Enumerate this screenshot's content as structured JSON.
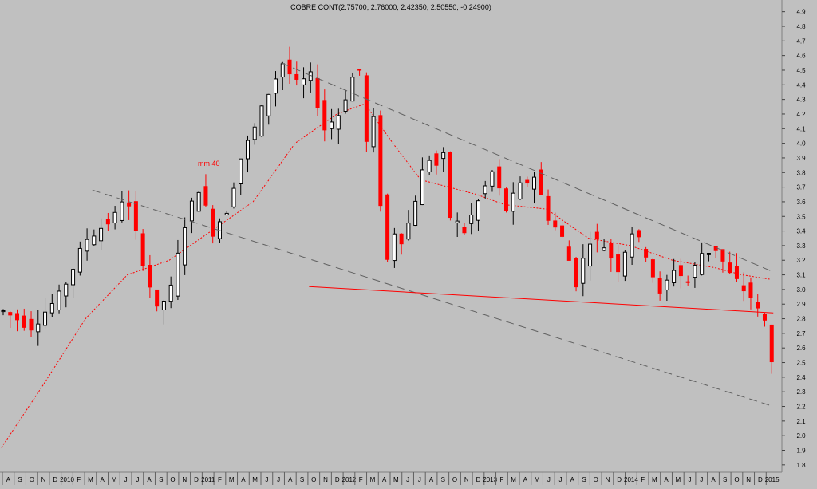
{
  "chart_data": {
    "type": "candlestick",
    "title": "COBRE CONT(2.75700, 2.76000, 2.42350, 2.50550, -0.24900)",
    "ylim": [
      1.75,
      4.98
    ],
    "y_ticks": [
      "4.9",
      "4.8",
      "4.7",
      "4.6",
      "4.5",
      "4.4",
      "4.3",
      "4.2",
      "4.1",
      "4.0",
      "3.9",
      "3.8",
      "3.7",
      "3.6",
      "3.5",
      "3.4",
      "3.3",
      "3.2",
      "3.1",
      "3.0",
      "2.9",
      "2.8",
      "2.7",
      "2.6",
      "2.5",
      "2.4",
      "2.3",
      "2.2",
      "2.1",
      "2.0",
      "1.9",
      "1.8"
    ],
    "x_ticks": [
      "A",
      "S",
      "O",
      "N",
      "D",
      "2010",
      "F",
      "M",
      "A",
      "M",
      "J",
      "J",
      "A",
      "S",
      "O",
      "N",
      "D",
      "2011",
      "F",
      "M",
      "A",
      "M",
      "J",
      "J",
      "A",
      "S",
      "O",
      "N",
      "D",
      "2012",
      "F",
      "M",
      "A",
      "M",
      "J",
      "J",
      "A",
      "S",
      "O",
      "N",
      "D",
      "2013",
      "F",
      "M",
      "A",
      "M",
      "J",
      "J",
      "A",
      "S",
      "O",
      "N",
      "D",
      "2014",
      "F",
      "M",
      "A",
      "M",
      "J",
      "J",
      "A",
      "S",
      "O",
      "N",
      "D",
      "2015"
    ],
    "grid": false,
    "colors": {
      "up": "#000000",
      "down": "#ff0000",
      "ma": "#ff0000",
      "channel": "#606060",
      "support": "#ff0000",
      "background": "#c0c0c0"
    },
    "annotation_ma": "mm 40",
    "close_path": [
      [
        0,
        2.85
      ],
      [
        4,
        2.75
      ],
      [
        8,
        2.95
      ],
      [
        12,
        3.35
      ],
      [
        16,
        3.5
      ],
      [
        17,
        3.62
      ],
      [
        18,
        3.55
      ],
      [
        20,
        3.2
      ],
      [
        22,
        2.85
      ],
      [
        24,
        3.0
      ],
      [
        26,
        3.45
      ],
      [
        28,
        3.7
      ],
      [
        30,
        3.4
      ],
      [
        32,
        3.55
      ],
      [
        34,
        3.9
      ],
      [
        36,
        4.1
      ],
      [
        38,
        4.35
      ],
      [
        40,
        4.55
      ],
      [
        42,
        4.4
      ],
      [
        44,
        4.45
      ],
      [
        46,
        4.1
      ],
      [
        48,
        4.2
      ],
      [
        50,
        4.45
      ],
      [
        51,
        4.5
      ],
      [
        52,
        4.0
      ],
      [
        53,
        4.15
      ],
      [
        54,
        3.6
      ],
      [
        55,
        3.2
      ],
      [
        56,
        3.4
      ],
      [
        57,
        3.35
      ],
      [
        58,
        3.45
      ],
      [
        60,
        3.8
      ],
      [
        61,
        3.9
      ],
      [
        62,
        3.85
      ],
      [
        63,
        3.9
      ],
      [
        64,
        3.5
      ],
      [
        66,
        3.4
      ],
      [
        68,
        3.6
      ],
      [
        70,
        3.8
      ],
      [
        72,
        3.55
      ],
      [
        74,
        3.7
      ],
      [
        76,
        3.78
      ],
      [
        78,
        3.5
      ],
      [
        80,
        3.35
      ],
      [
        82,
        3.05
      ],
      [
        84,
        3.35
      ],
      [
        86,
        3.3
      ],
      [
        88,
        3.15
      ],
      [
        90,
        3.4
      ],
      [
        92,
        3.25
      ],
      [
        94,
        2.95
      ],
      [
        96,
        3.15
      ],
      [
        98,
        3.05
      ],
      [
        100,
        3.25
      ],
      [
        102,
        3.28
      ],
      [
        104,
        3.1
      ],
      [
        106,
        3.0
      ],
      [
        107,
        2.95
      ],
      [
        108,
        2.85
      ],
      [
        109,
        2.78
      ],
      [
        110,
        2.5
      ]
    ],
    "ma_path": [
      [
        0,
        1.92
      ],
      [
        6,
        2.35
      ],
      [
        12,
        2.8
      ],
      [
        18,
        3.1
      ],
      [
        24,
        3.2
      ],
      [
        30,
        3.4
      ],
      [
        36,
        3.6
      ],
      [
        42,
        4.0
      ],
      [
        48,
        4.2
      ],
      [
        52,
        4.27
      ],
      [
        56,
        4.0
      ],
      [
        60,
        3.75
      ],
      [
        64,
        3.7
      ],
      [
        68,
        3.65
      ],
      [
        72,
        3.58
      ],
      [
        78,
        3.55
      ],
      [
        84,
        3.35
      ],
      [
        90,
        3.3
      ],
      [
        96,
        3.2
      ],
      [
        102,
        3.15
      ],
      [
        106,
        3.1
      ],
      [
        110,
        3.07
      ]
    ],
    "trendlines": [
      {
        "name": "upper-channel",
        "points": [
          [
            40,
            4.55
          ],
          [
            110,
            3.12
          ]
        ]
      },
      {
        "name": "lower-channel",
        "points": [
          [
            13,
            3.68
          ],
          [
            110,
            2.2
          ]
        ]
      },
      {
        "name": "support-line",
        "points": [
          [
            44,
            3.02
          ],
          [
            110,
            2.84
          ]
        ]
      }
    ],
    "last_bar": {
      "open": 2.757,
      "high": 2.76,
      "low": 2.4235,
      "close": 2.5055,
      "change": -0.249
    }
  }
}
